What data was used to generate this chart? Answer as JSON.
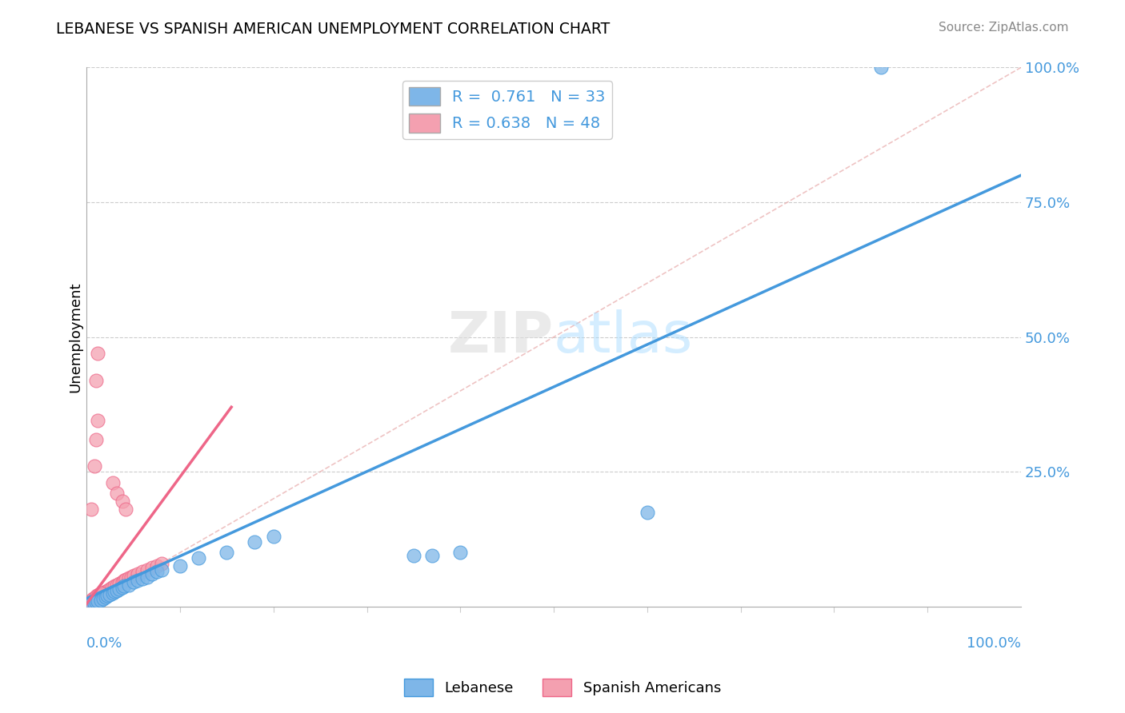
{
  "title": "LEBANESE VS SPANISH AMERICAN UNEMPLOYMENT CORRELATION CHART",
  "source": "Source: ZipAtlas.com",
  "ylabel": "Unemployment",
  "color_lebanese": "#7EB6E8",
  "color_spanish": "#F4A0B0",
  "color_line_lebanese": "#4499DD",
  "color_line_spanish": "#EE6688",
  "color_diagonal": "#E8AAAA",
  "axis_label_color": "#4499DD",
  "leb_line": [
    0.0,
    1.0,
    0.015,
    0.8
  ],
  "spa_line": [
    0.0,
    0.155,
    0.005,
    0.37
  ],
  "diag_line": [
    0.0,
    1.0,
    0.0,
    1.0
  ],
  "lebanese_points": [
    [
      0.005,
      0.005
    ],
    [
      0.008,
      0.005
    ],
    [
      0.01,
      0.008
    ],
    [
      0.012,
      0.01
    ],
    [
      0.015,
      0.012
    ],
    [
      0.018,
      0.015
    ],
    [
      0.02,
      0.018
    ],
    [
      0.022,
      0.02
    ],
    [
      0.025,
      0.022
    ],
    [
      0.028,
      0.025
    ],
    [
      0.03,
      0.028
    ],
    [
      0.032,
      0.03
    ],
    [
      0.035,
      0.032
    ],
    [
      0.038,
      0.035
    ],
    [
      0.04,
      0.038
    ],
    [
      0.045,
      0.04
    ],
    [
      0.05,
      0.045
    ],
    [
      0.055,
      0.048
    ],
    [
      0.06,
      0.052
    ],
    [
      0.065,
      0.055
    ],
    [
      0.07,
      0.06
    ],
    [
      0.075,
      0.065
    ],
    [
      0.08,
      0.068
    ],
    [
      0.1,
      0.075
    ],
    [
      0.12,
      0.09
    ],
    [
      0.15,
      0.1
    ],
    [
      0.18,
      0.12
    ],
    [
      0.2,
      0.13
    ],
    [
      0.35,
      0.095
    ],
    [
      0.37,
      0.095
    ],
    [
      0.4,
      0.1
    ],
    [
      0.6,
      0.175
    ],
    [
      0.85,
      1.0
    ]
  ],
  "spanish_points": [
    [
      0.005,
      0.005
    ],
    [
      0.007,
      0.008
    ],
    [
      0.008,
      0.01
    ],
    [
      0.01,
      0.012
    ],
    [
      0.012,
      0.015
    ],
    [
      0.013,
      0.018
    ],
    [
      0.015,
      0.02
    ],
    [
      0.016,
      0.022
    ],
    [
      0.018,
      0.025
    ],
    [
      0.02,
      0.028
    ],
    [
      0.022,
      0.03
    ],
    [
      0.025,
      0.033
    ],
    [
      0.027,
      0.035
    ],
    [
      0.03,
      0.038
    ],
    [
      0.032,
      0.04
    ],
    [
      0.035,
      0.043
    ],
    [
      0.038,
      0.045
    ],
    [
      0.04,
      0.048
    ],
    [
      0.042,
      0.05
    ],
    [
      0.045,
      0.053
    ],
    [
      0.048,
      0.055
    ],
    [
      0.05,
      0.058
    ],
    [
      0.055,
      0.06
    ],
    [
      0.06,
      0.065
    ],
    [
      0.065,
      0.068
    ],
    [
      0.07,
      0.072
    ],
    [
      0.075,
      0.076
    ],
    [
      0.08,
      0.08
    ],
    [
      0.005,
      0.18
    ],
    [
      0.008,
      0.26
    ],
    [
      0.01,
      0.31
    ],
    [
      0.012,
      0.345
    ],
    [
      0.028,
      0.23
    ],
    [
      0.032,
      0.21
    ],
    [
      0.038,
      0.195
    ],
    [
      0.042,
      0.18
    ],
    [
      0.01,
      0.42
    ],
    [
      0.012,
      0.47
    ],
    [
      0.003,
      0.005
    ],
    [
      0.004,
      0.008
    ],
    [
      0.005,
      0.01
    ],
    [
      0.006,
      0.012
    ],
    [
      0.007,
      0.015
    ],
    [
      0.009,
      0.018
    ],
    [
      0.011,
      0.02
    ],
    [
      0.013,
      0.022
    ],
    [
      0.015,
      0.025
    ]
  ]
}
